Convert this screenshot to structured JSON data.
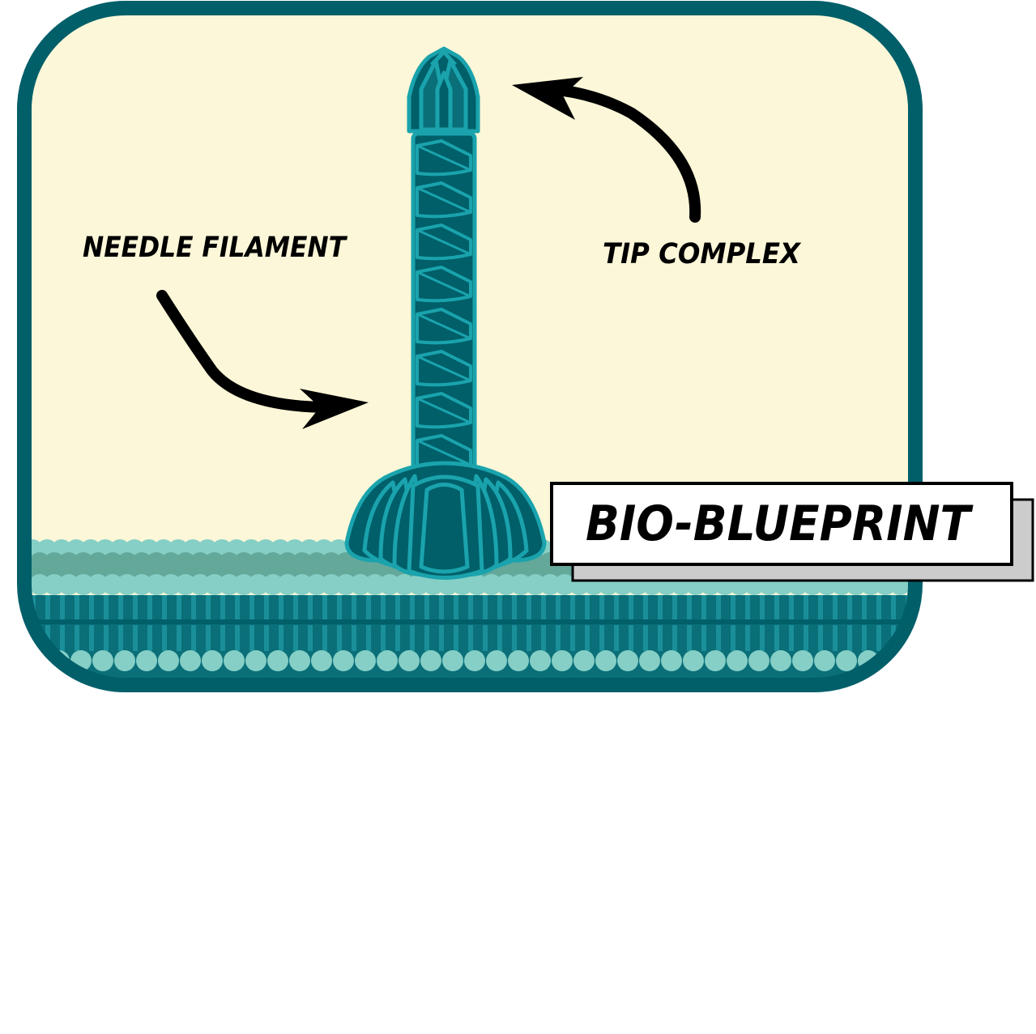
{
  "labels": {
    "needle_filament": "NEEDLE FILAMENT",
    "tip_complex": "TIP COMPLEX"
  },
  "badge": {
    "text": "BIO-BLUEPRINT"
  },
  "colors": {
    "frame": "#005f69",
    "background": "#fcf7d8",
    "structure_fill": "#005f69",
    "structure_stroke": "#1aa3ad",
    "membrane_head": "#86cfc6",
    "membrane_head_shadow": "#64a89a",
    "membrane_tail": "#1a8f99",
    "membrane_tail_dark": "#0a6f78",
    "arrow": "#000000",
    "badge_shadow": "#cccccc"
  },
  "icons": {
    "needle": "needle-complex-icon",
    "membrane": "lipid-bilayer-icon"
  }
}
